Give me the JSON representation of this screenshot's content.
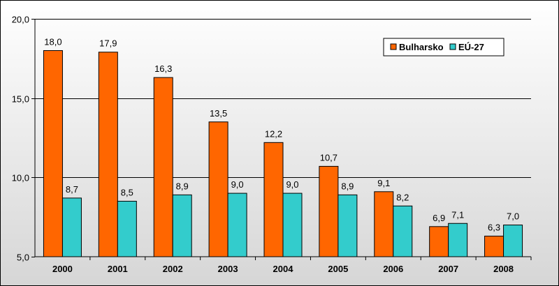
{
  "chart_data": {
    "type": "bar",
    "categories": [
      "2000",
      "2001",
      "2002",
      "2003",
      "2004",
      "2005",
      "2006",
      "2007",
      "2008"
    ],
    "series": [
      {
        "name": "Bulharsko",
        "color": "#ff6600",
        "values": [
          18.0,
          17.9,
          16.3,
          13.5,
          12.2,
          10.7,
          9.1,
          6.9,
          6.3
        ],
        "labels": [
          "18,0",
          "17,9",
          "16,3",
          "13,5",
          "12,2",
          "10,7",
          "9,1",
          "6,9",
          "6,3"
        ]
      },
      {
        "name": "EÚ-27",
        "color": "#33cccc",
        "values": [
          8.7,
          8.5,
          8.9,
          9.0,
          9.0,
          8.9,
          8.2,
          7.1,
          7.0
        ],
        "labels": [
          "8,7",
          "8,5",
          "8,9",
          "9,0",
          "9,0",
          "8,9",
          "8,2",
          "7,1",
          "7,0"
        ]
      }
    ],
    "ylim": [
      5.0,
      20.0
    ],
    "yticks": [
      5.0,
      10.0,
      15.0,
      20.0
    ],
    "ytick_labels": [
      "5,0",
      "10,0",
      "15,0",
      "20,0"
    ],
    "grid": true,
    "legend_position": "top-right",
    "title": "",
    "xlabel": "",
    "ylabel": ""
  }
}
